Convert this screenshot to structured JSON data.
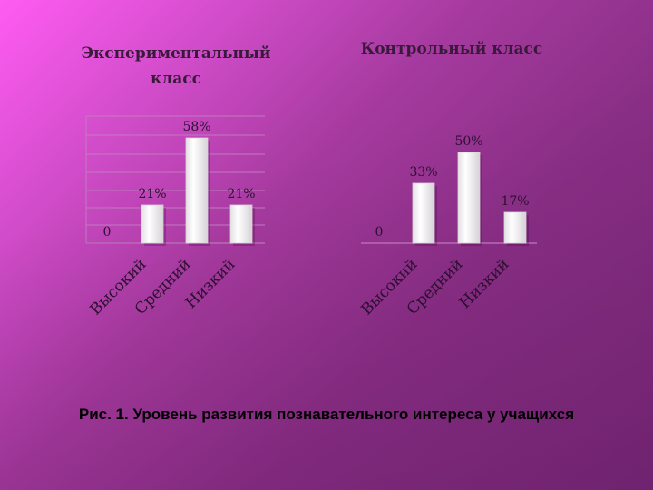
{
  "caption": "Рис. 1. Уровень развития познавательного интереса у учащихся",
  "chart_data": [
    {
      "type": "bar",
      "title": "Экспериментальный класс",
      "title_lines": [
        "Экспериментальный",
        "класс"
      ],
      "categories": [
        "Высокий",
        "Средний",
        "Низкий"
      ],
      "values": [
        21,
        58,
        21
      ],
      "data_labels": [
        "21%",
        "58%",
        "21%"
      ],
      "axis_zero_label": "0",
      "ylim": [
        0,
        70
      ],
      "grid": true
    },
    {
      "type": "bar",
      "title": "Контрольный класс",
      "title_lines": [
        "Контрольный класс"
      ],
      "categories": [
        "Высокий",
        "Средний",
        "Низкий"
      ],
      "values": [
        33,
        50,
        17
      ],
      "data_labels": [
        "33%",
        "50%",
        "17%"
      ],
      "axis_zero_label": "0",
      "ylim": [
        0,
        70
      ],
      "grid": false
    }
  ],
  "colors": {
    "bar_fill": "#ffffff",
    "bar_edge": "#d8d4d8",
    "grid": "#c27ac0",
    "text": "#2b1030"
  }
}
